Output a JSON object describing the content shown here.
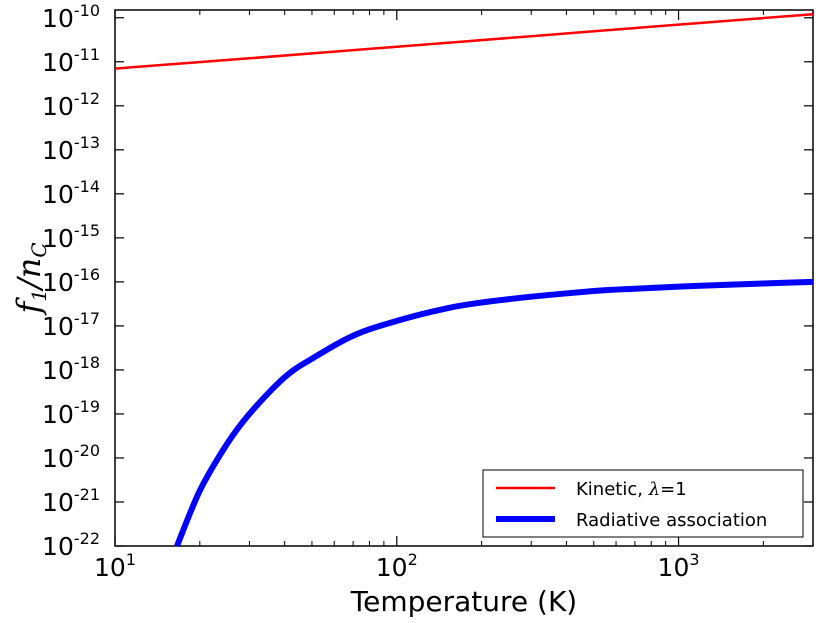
{
  "chart_data": {
    "type": "line",
    "title": "",
    "xlabel": "Temperature (K)",
    "ylabel": {
      "main": "f",
      "sub1": "1",
      "slash": "/",
      "n": "n",
      "subC": "C"
    },
    "xscale": "log",
    "yscale": "log",
    "xlim": [
      10,
      3000
    ],
    "ylim": [
      1e-22,
      1.5e-10
    ],
    "grid": false,
    "legend_position": "lower-right",
    "x_ticks": [
      {
        "base": "10",
        "exp": "1",
        "value": 10
      },
      {
        "base": "10",
        "exp": "2",
        "value": 100
      },
      {
        "base": "10",
        "exp": "3",
        "value": 1000
      }
    ],
    "y_ticks": [
      {
        "base": "10",
        "exp": "-22",
        "value": -22
      },
      {
        "base": "10",
        "exp": "-21",
        "value": -21
      },
      {
        "base": "10",
        "exp": "-20",
        "value": -20
      },
      {
        "base": "10",
        "exp": "-19",
        "value": -19
      },
      {
        "base": "10",
        "exp": "-18",
        "value": -18
      },
      {
        "base": "10",
        "exp": "-17",
        "value": -17
      },
      {
        "base": "10",
        "exp": "-16",
        "value": -16
      },
      {
        "base": "10",
        "exp": "-15",
        "value": -15
      },
      {
        "base": "10",
        "exp": "-14",
        "value": -14
      },
      {
        "base": "10",
        "exp": "-13",
        "value": -13
      },
      {
        "base": "10",
        "exp": "-12",
        "value": -12
      },
      {
        "base": "10",
        "exp": "-11",
        "value": -11
      },
      {
        "base": "10",
        "exp": "-10",
        "value": -10
      }
    ],
    "series": [
      {
        "name": "Kinetic, λ=1",
        "legend_prefix": "Kinetic, ",
        "legend_symbol": "λ",
        "legend_suffix": "=1",
        "color": "#ff0000",
        "style": "thin",
        "x": [
          10,
          30,
          100,
          300,
          1000,
          3000
        ],
        "y": [
          7e-12,
          1.2e-11,
          2.2e-11,
          3.8e-11,
          7e-11,
          1.2e-10
        ]
      },
      {
        "name": "Radiative association",
        "color": "#0000ff",
        "style": "thick",
        "x": [
          16.6,
          20,
          25,
          30,
          40,
          50,
          70,
          100,
          150,
          200,
          300,
          500,
          700,
          1000,
          1500,
          2000,
          3000
        ],
        "y": [
          1e-22,
          1.8e-21,
          2.1e-20,
          1e-19,
          6.8e-19,
          1.8e-18,
          6e-18,
          1.3e-17,
          2.5e-17,
          3.4e-17,
          4.6e-17,
          6.2e-17,
          7e-17,
          7.8e-17,
          8.6e-17,
          9.2e-17,
          1e-16
        ]
      }
    ]
  }
}
